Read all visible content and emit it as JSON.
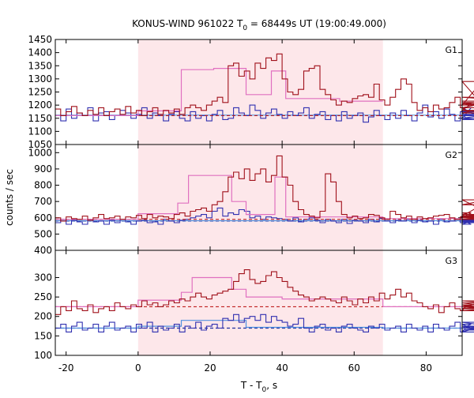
{
  "title": {
    "main": "KONUS-WIND 961022 T",
    "sub0": "0",
    "rest": " = 68449s UT (19:00:49.000)"
  },
  "xlabel": {
    "main": "T - T",
    "sub0": "0",
    "rest": ", s"
  },
  "ylabel": "counts / sec",
  "colors": {
    "highlight": "#fde7ea",
    "red": "#a0101a",
    "red_fit": "#e070c0",
    "blue": "#3030b0",
    "blue_fit": "#5090e0",
    "red_dash": "#c02020",
    "blue_dash": "#2030a0"
  },
  "chart_data": {
    "type": "line",
    "x_range": [
      -23,
      90
    ],
    "x_ticks": [
      -20,
      0,
      20,
      40,
      60,
      80
    ],
    "x_tick_labels": [
      "-20",
      "0",
      "20",
      "40",
      "60",
      "80"
    ],
    "highlight_interval": [
      0,
      68
    ],
    "bin_width": 1.5,
    "panels": [
      {
        "label": "G1",
        "ylim": [
          1050,
          1450
        ],
        "y_ticks": [
          1050,
          1100,
          1150,
          1200,
          1250,
          1300,
          1350,
          1400,
          1450
        ],
        "y_tick_labels": [
          "1050",
          "1100",
          "1150",
          "1200",
          "1250",
          "1300",
          "1350",
          "1400",
          "1450"
        ],
        "series": [
          {
            "color": "red",
            "fit_color": "red_fit",
            "background": 1160,
            "values": [
              1185,
              1160,
              1175,
              1195,
              1170,
              1160,
              1180,
              1165,
              1190,
              1160,
              1175,
              1185,
              1165,
              1195,
              1170,
              1180,
              1160,
              1175,
              1190,
              1165,
              1180,
              1170,
              1185,
              1165,
              1190,
              1200,
              1190,
              1180,
              1200,
              1215,
              1230,
              1210,
              1350,
              1360,
              1310,
              1330,
              1300,
              1360,
              1340,
              1380,
              1370,
              1395,
              1300,
              1250,
              1240,
              1260,
              1330,
              1340,
              1350,
              1260,
              1240,
              1220,
              1200,
              1215,
              1210,
              1225,
              1235,
              1240,
              1230,
              1280,
              1220,
              1200,
              1230,
              1260,
              1300,
              1280,
              1210,
              1180,
              1190,
              1175,
              1200,
              1185,
              1190,
              1210,
              1230,
              1190,
              1180,
              1205,
              1200,
              1290,
              1180,
              1170,
              1200,
              1210,
              1190,
              1230,
              1215
            ],
            "fit": [
              {
                "x": [
                  -23,
                  0
                ],
                "y": 1160
              },
              {
                "x": [
                  0,
                  12
                ],
                "y": 1178
              },
              {
                "x": [
                  12,
                  21
                ],
                "y": 1335
              },
              {
                "x": [
                  21,
                  30
                ],
                "y": 1340
              },
              {
                "x": [
                  30,
                  37
                ],
                "y": 1240
              },
              {
                "x": [
                  37,
                  41
                ],
                "y": 1330
              },
              {
                "x": [
                  41,
                  56
                ],
                "y": 1225
              },
              {
                "x": [
                  56,
                  68
                ],
                "y": 1215
              }
            ]
          },
          {
            "color": "blue",
            "fit_color": "blue_fit",
            "background": 1160,
            "values": [
              1160,
              1140,
              1185,
              1150,
              1170,
              1160,
              1190,
              1140,
              1170,
              1175,
              1145,
              1160,
              1180,
              1170,
              1150,
              1165,
              1190,
              1150,
              1170,
              1160,
              1140,
              1165,
              1175,
              1150,
              1140,
              1175,
              1150,
              1160,
              1140,
              1165,
              1180,
              1145,
              1150,
              1190,
              1170,
              1160,
              1200,
              1180,
              1150,
              1170,
              1185,
              1165,
              1150,
              1175,
              1160,
              1170,
              1190,
              1150,
              1165,
              1175,
              1145,
              1160,
              1140,
              1175,
              1150,
              1160,
              1170,
              1135,
              1155,
              1180,
              1160,
              1145,
              1170,
              1150,
              1180,
              1160,
              1140,
              1170,
              1200,
              1155,
              1175,
              1150,
              1185,
              1165,
              1140,
              1175,
              1150,
              1190,
              1160,
              1170,
              1180,
              1145,
              1160,
              1175,
              1150,
              1180,
              1165
            ],
            "fit": [
              {
                "x": [
                  -23,
                  90
                ],
                "y": 1162
              }
            ]
          }
        ]
      },
      {
        "label": "G2",
        "ylim": [
          400,
          1050
        ],
        "y_ticks": [
          400,
          500,
          600,
          700,
          800,
          900,
          1000
        ],
        "y_tick_labels": [
          "400",
          "500",
          "600",
          "700",
          "800",
          "900",
          "1000"
        ],
        "series": [
          {
            "color": "red",
            "fit_color": "red_fit",
            "background": 590,
            "values": [
              600,
              580,
              605,
              595,
              590,
              610,
              585,
              600,
              620,
              595,
              600,
              610,
              590,
              605,
              600,
              615,
              595,
              620,
              600,
              610,
              605,
              595,
              620,
              630,
              610,
              640,
              650,
              660,
              640,
              680,
              700,
              760,
              850,
              880,
              840,
              900,
              830,
              870,
              900,
              820,
              860,
              980,
              850,
              800,
              700,
              650,
              620,
              610,
              600,
              640,
              870,
              820,
              700,
              620,
              600,
              610,
              595,
              600,
              620,
              615,
              600,
              590,
              640,
              620,
              600,
              610,
              590,
              605,
              595,
              600,
              610,
              615,
              620,
              600,
              590,
              605,
              600,
              630,
              610,
              680,
              710,
              620,
              600,
              590,
              610,
              620,
              605
            ],
            "fit": [
              {
                "x": [
                  -23,
                  0
                ],
                "y": 590
              },
              {
                "x": [
                  0,
                  11
                ],
                "y": 625
              },
              {
                "x": [
                  11,
                  14
                ],
                "y": 690
              },
              {
                "x": [
                  14,
                  26
                ],
                "y": 860
              },
              {
                "x": [
                  26,
                  30
                ],
                "y": 700
              },
              {
                "x": [
                  30,
                  38
                ],
                "y": 620
              },
              {
                "x": [
                  38,
                  41
                ],
                "y": 850
              },
              {
                "x": [
                  41,
                  68
                ],
                "y": 605
              },
              {
                "x": [
                  68,
                  90
                ],
                "y": 595
              }
            ]
          },
          {
            "color": "blue",
            "fit_color": "blue_fit",
            "background": 580,
            "values": [
              570,
              590,
              560,
              585,
              575,
              560,
              590,
              575,
              580,
              560,
              585,
              570,
              590,
              575,
              560,
              580,
              585,
              570,
              575,
              560,
              590,
              580,
              570,
              585,
              590,
              600,
              610,
              620,
              600,
              640,
              660,
              610,
              630,
              620,
              650,
              640,
              600,
              610,
              590,
              605,
              600,
              595,
              590,
              580,
              600,
              575,
              590,
              600,
              585,
              570,
              590,
              580,
              570,
              590,
              565,
              585,
              580,
              570,
              590,
              575,
              595,
              580,
              570,
              585,
              580,
              590,
              570,
              585,
              575,
              580,
              560,
              590,
              575,
              580,
              590,
              570,
              585,
              560,
              590,
              575,
              580,
              570,
              590,
              575,
              585,
              570,
              590
            ],
            "fit": [
              {
                "x": [
                  -23,
                  90
                ],
                "y": 582
              }
            ]
          }
        ]
      },
      {
        "label": "G3",
        "ylim": [
          100,
          370
        ],
        "y_ticks": [
          100,
          150,
          200,
          250,
          300
        ],
        "y_tick_labels": [
          "100",
          "150",
          "200",
          "250",
          "300"
        ],
        "series": [
          {
            "color": "red",
            "fit_color": "red_fit",
            "background": 225,
            "values": [
              205,
              225,
              215,
              240,
              220,
              215,
              230,
              210,
              220,
              225,
              215,
              235,
              225,
              220,
              230,
              225,
              240,
              230,
              235,
              225,
              230,
              240,
              235,
              245,
              240,
              250,
              260,
              250,
              245,
              255,
              260,
              265,
              270,
              290,
              310,
              320,
              295,
              285,
              290,
              305,
              315,
              300,
              290,
              275,
              265,
              255,
              250,
              240,
              245,
              250,
              245,
              240,
              235,
              250,
              240,
              230,
              245,
              235,
              250,
              240,
              260,
              245,
              255,
              270,
              250,
              260,
              240,
              235,
              225,
              220,
              230,
              210,
              225,
              235,
              220,
              215,
              225,
              230,
              220,
              240,
              235,
              225,
              220,
              230,
              215,
              225,
              220
            ],
            "fit": [
              {
                "x": [
                  -23,
                  0
                ],
                "y": 225
              },
              {
                "x": [
                  0,
                  12
                ],
                "y": 242
              },
              {
                "x": [
                  12,
                  15
                ],
                "y": 262
              },
              {
                "x": [
                  15,
                  26
                ],
                "y": 300
              },
              {
                "x": [
                  26,
                  30
                ],
                "y": 270
              },
              {
                "x": [
                  30,
                  40
                ],
                "y": 250
              },
              {
                "x": [
                  40,
                  68
                ],
                "y": 245
              },
              {
                "x": [
                  68,
                  90
                ],
                "y": 225
              }
            ]
          },
          {
            "color": "blue",
            "fit_color": "blue_fit",
            "background": 170,
            "values": [
              170,
              180,
              160,
              175,
              185,
              165,
              170,
              180,
              160,
              175,
              185,
              165,
              170,
              175,
              160,
              180,
              170,
              185,
              160,
              175,
              165,
              170,
              180,
              160,
              175,
              170,
              185,
              165,
              175,
              180,
              170,
              195,
              190,
              205,
              185,
              195,
              200,
              190,
              205,
              185,
              200,
              190,
              185,
              175,
              180,
              195,
              170,
              160,
              175,
              180,
              165,
              170,
              160,
              175,
              180,
              170,
              165,
              160,
              175,
              170,
              180,
              165,
              170,
              175,
              160,
              180,
              170,
              165,
              175,
              160,
              180,
              170,
              165,
              175,
              185,
              160,
              170,
              180,
              165,
              170,
              175,
              160,
              185,
              170,
              165,
              175,
              170
            ],
            "fit": [
              {
                "x": [
                  -23,
                  0
                ],
                "y": 170
              },
              {
                "x": [
                  0,
                  12
                ],
                "y": 175
              },
              {
                "x": [
                  12,
                  30
                ],
                "y": 190
              },
              {
                "x": [
                  30,
                  68
                ],
                "y": 172
              },
              {
                "x": [
                  68,
                  90
                ],
                "y": 170
              }
            ]
          }
        ]
      }
    ]
  }
}
